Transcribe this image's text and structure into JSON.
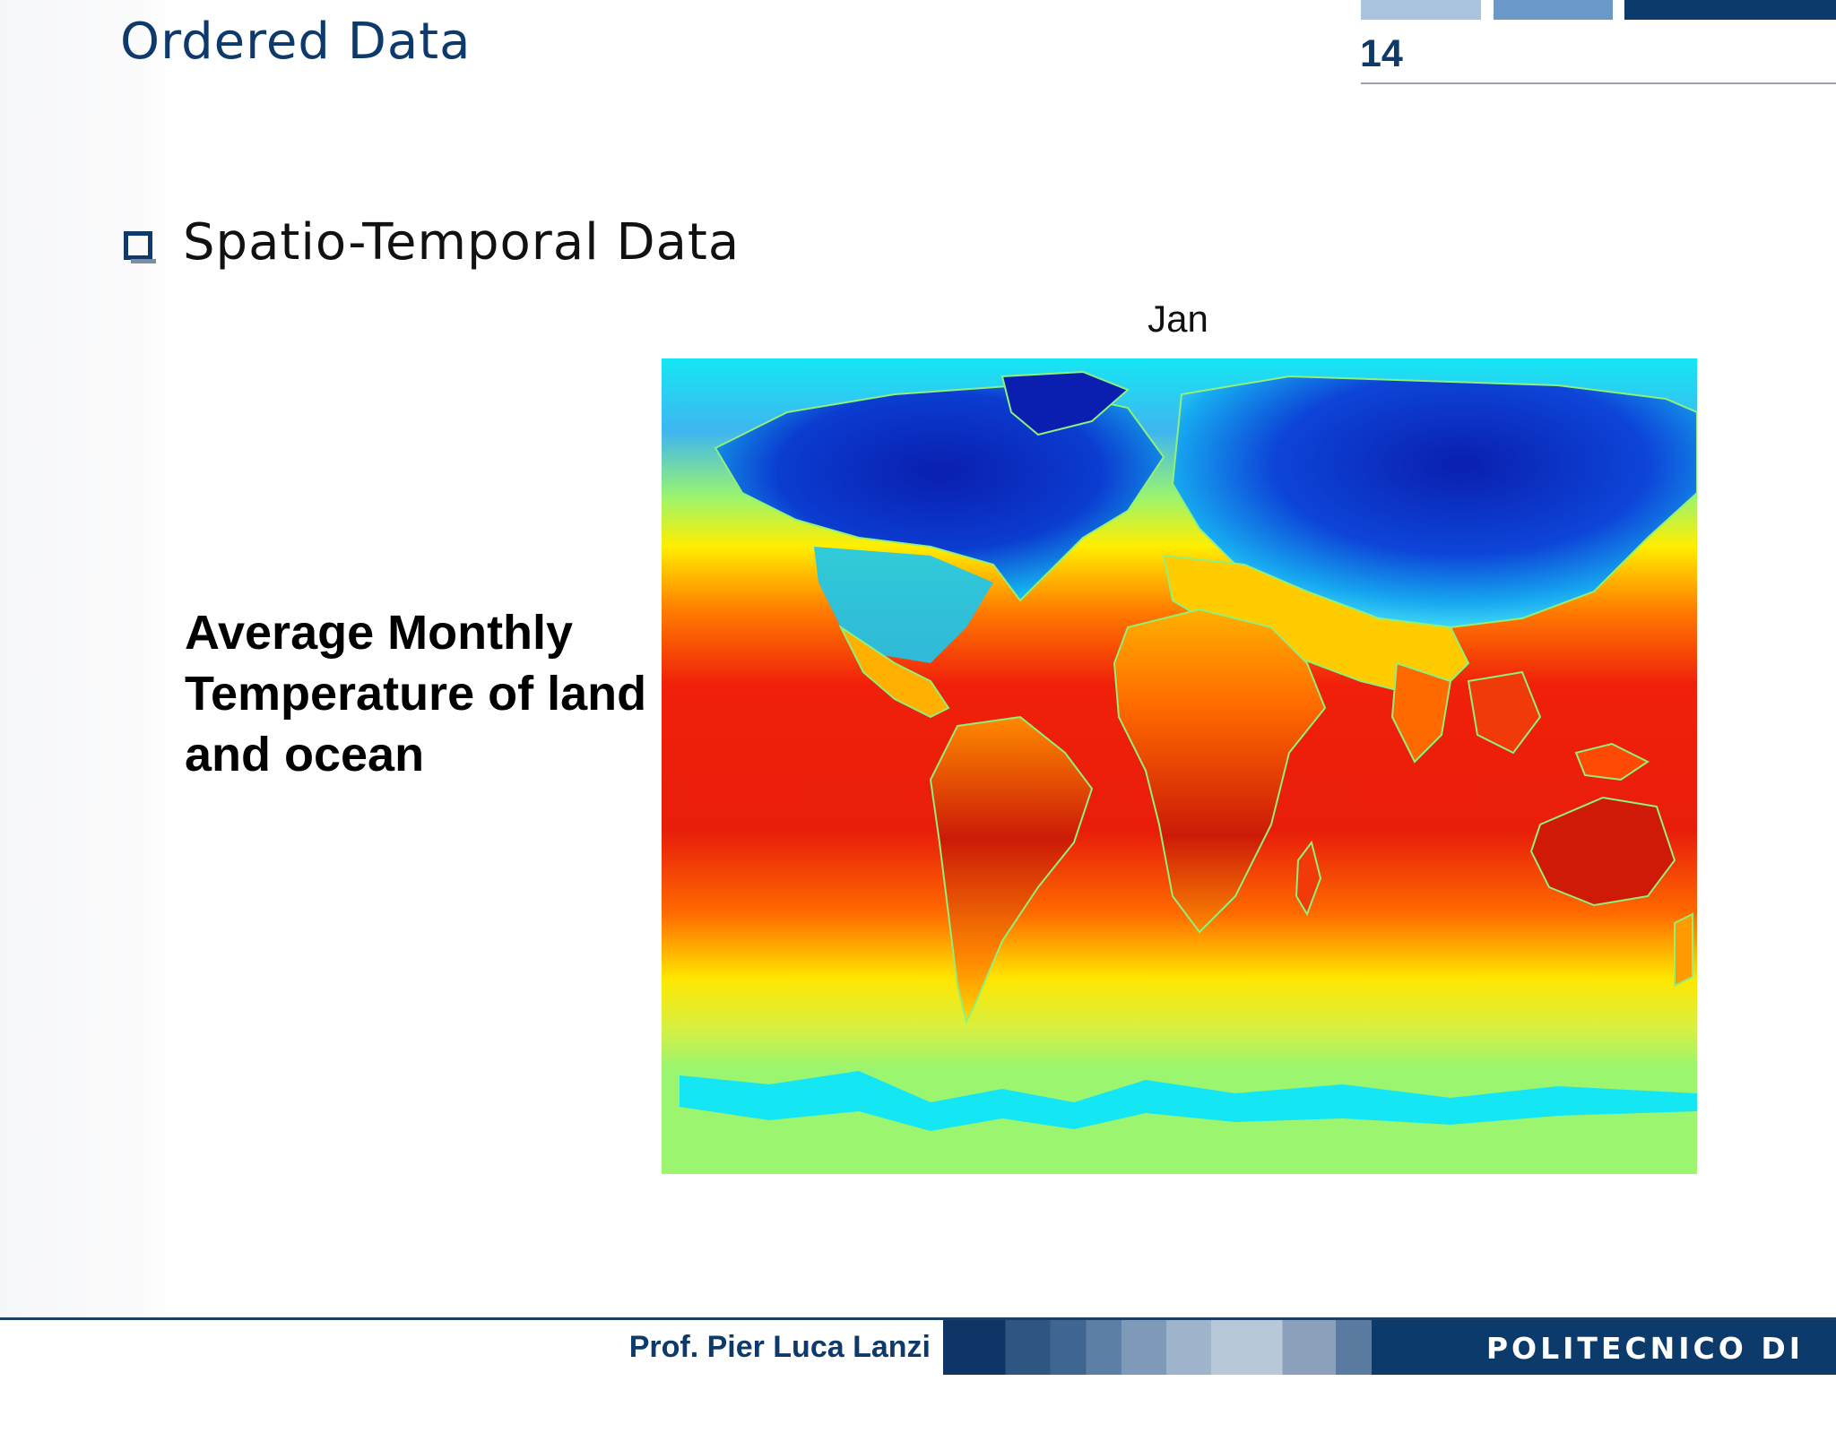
{
  "slide": {
    "title": "Ordered Data",
    "page_number": "14",
    "bullet": "Spatio-Temporal Data",
    "map_title": "Jan",
    "side_caption": "Average Monthly Temperature of land and ocean",
    "map_image": "world temperature heatmap (January)"
  },
  "footer": {
    "author": "Prof. Pier Luca Lanzi",
    "institution": "POLITECNICO DI MILANO"
  },
  "colors": {
    "title_blue": "#0e3a6b",
    "heat_hot": "#e81e0b",
    "heat_warm": "#ff7b00",
    "heat_mild": "#ffee00",
    "heat_cool": "#9bf56e",
    "heat_cold": "#15e6f3",
    "heat_frozen": "#0a1fb0"
  }
}
